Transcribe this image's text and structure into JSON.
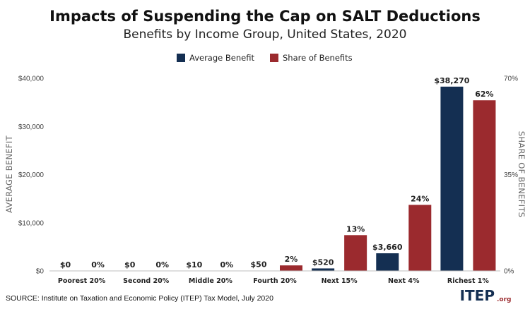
{
  "chart_data": {
    "type": "bar",
    "title": "Impacts of Suspending the Cap on SALT Deductions",
    "subtitle": "Benefits by Income Group, United States, 2020",
    "categories": [
      "Poorest 20%",
      "Second 20%",
      "Middle 20%",
      "Fourth 20%",
      "Next 15%",
      "Next 4%",
      "Richest 1%"
    ],
    "series": [
      {
        "name": "Average Benefit",
        "axis": "left",
        "color": "#142f52",
        "values": [
          0,
          0,
          10,
          50,
          520,
          3660,
          38270
        ],
        "labels": [
          "$0",
          "$0",
          "$10",
          "$50",
          "$520",
          "$3,660",
          "$38,270"
        ]
      },
      {
        "name": "Share of Benefits",
        "axis": "right",
        "color": "#9b2a2e",
        "values": [
          0,
          0,
          0,
          2,
          13,
          24,
          62
        ],
        "labels": [
          "0%",
          "0%",
          "0%",
          "2%",
          "13%",
          "24%",
          "62%"
        ]
      }
    ],
    "ylabel": "AVERAGE BENEFIT",
    "ylim": [
      0,
      40000
    ],
    "yticks": [
      0,
      10000,
      20000,
      30000,
      40000
    ],
    "ytick_labels": [
      "$0",
      "$10,000",
      "$20,000",
      "$30,000",
      "$40,000"
    ],
    "y2label": "SHARE OF BENEFITS",
    "y2lim": [
      0,
      70
    ],
    "y2ticks": [
      0,
      35,
      70
    ],
    "y2tick_labels": [
      "0%",
      "35%",
      "70%"
    ],
    "legend_position": "top-center",
    "grid": false
  },
  "source": "SOURCE: Institute on Taxation and Economic Policy (ITEP) Tax Model, July 2020",
  "brand": {
    "main": "ITEP",
    "suffix": ".org"
  }
}
